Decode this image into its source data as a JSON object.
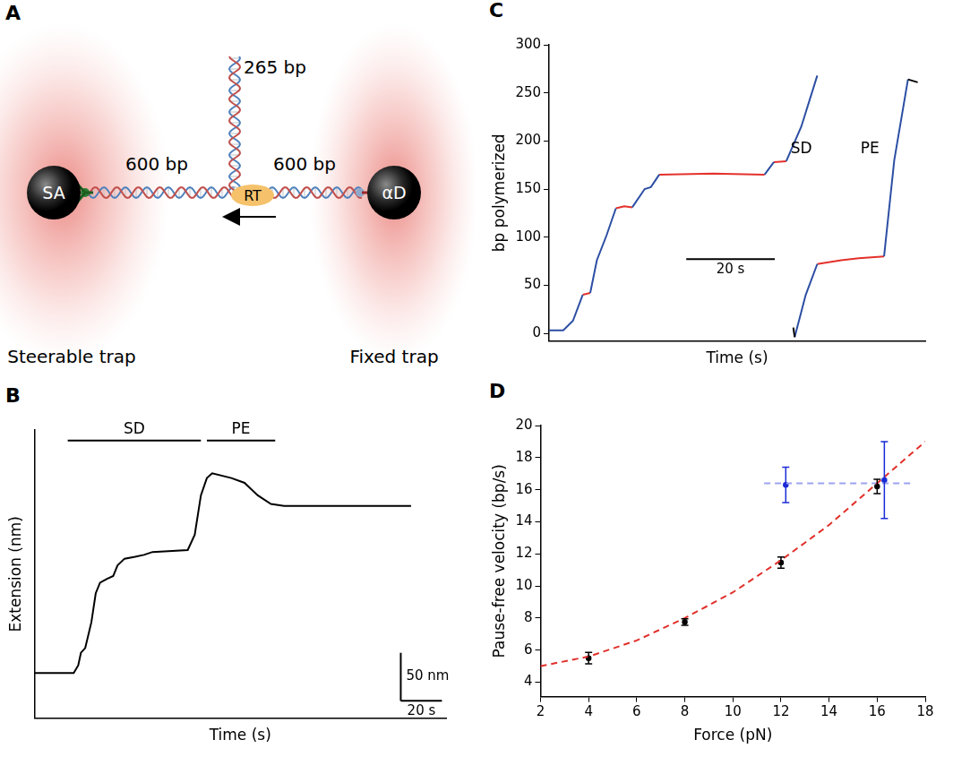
{
  "diagram": {
    "panel": "A",
    "left_bead": "SA",
    "right_bead": "αD",
    "left_handle": "600 bp",
    "branch": "265 bp",
    "right_handle": "600 bp",
    "enzyme": "RT",
    "left_trap": "Steerable trap",
    "right_trap": "Fixed trap"
  },
  "chart_data": [
    {
      "panel": "B",
      "type": "line",
      "x_label": "Time (s)",
      "y_label": "Extension (nm)",
      "xlim": [
        0,
        200
      ],
      "ylim": [
        0,
        300
      ],
      "tick_labels": false,
      "grid": false,
      "series": [
        {
          "color": "#000000",
          "x": [
            0,
            19.1,
            21.3,
            22.6,
            24.7,
            27.7,
            29.8,
            31.9,
            35.3,
            38.3,
            40.4,
            43.8,
            48.9,
            53.2,
            57.4,
            74.5,
            77.9,
            80.9,
            83.8,
            86.4,
            95.7,
            102.1,
            108.5,
            114.9,
            121.3,
            183
          ],
          "values": [
            47,
            47,
            55,
            68,
            73,
            100,
            130,
            141,
            145,
            148,
            159,
            166,
            168,
            170,
            173,
            175,
            191,
            232,
            250,
            255,
            250,
            245,
            232,
            223,
            221,
            221
          ]
        }
      ],
      "annotations": [
        {
          "text": "SD",
          "x_start": 16.2,
          "x_end": 80.9,
          "y": 289
        },
        {
          "text": "PE",
          "x_start": 83.8,
          "x_end": 117,
          "y": 289
        }
      ],
      "scale_bars": [
        {
          "label": "50 nm",
          "value": 50,
          "axis": "y",
          "x": 178,
          "y": 18
        },
        {
          "label": "20 s",
          "value": 20,
          "axis": "x",
          "x": 178,
          "y": 18
        }
      ]
    },
    {
      "panel": "C",
      "type": "line",
      "x_label": "Time (s)",
      "y_label": "bp polymerized",
      "xlim": [
        0,
        85
      ],
      "ylim": [
        -8,
        300
      ],
      "yticks": [
        0,
        50,
        100,
        150,
        200,
        250,
        300
      ],
      "tick_labels": "y",
      "grid": false,
      "series": [
        {
          "color": "#2c4ea3",
          "x": [
            0,
            3.2,
            5.4,
            7.6,
            8.5,
            9.3,
            10.8,
            13,
            15.1,
            17,
            18.8,
            21.6,
            23,
            24.9,
            37,
            48.7,
            50.8,
            52,
            53.6,
            57,
            60.6
          ],
          "values": [
            3,
            3,
            13,
            40,
            null,
            42,
            76,
            102,
            130,
            null,
            131,
            150,
            152,
            165,
            null,
            165,
            178,
            null,
            179,
            215,
            268
          ]
        },
        {
          "color": "#e4312b",
          "x": [
            7.6,
            9.3,
            12,
            15.1,
            17,
            18.8,
            21,
            24.9,
            37,
            48.7,
            49.5,
            50.8,
            53.6
          ],
          "values": [
            40,
            42,
            null,
            130,
            132,
            131,
            null,
            165,
            166,
            165,
            null,
            178,
            179
          ]
        },
        {
          "color": "#000000",
          "x": [
            55.2,
            55.5,
            56,
            81.1,
            83.3
          ],
          "values": [
            6,
            -4,
            null,
            264,
            261
          ]
        },
        {
          "color": "#2c4ea3",
          "x": [
            55.5,
            58,
            60.6,
            62,
            75.7,
            78,
            81.1
          ],
          "values": [
            -4,
            40,
            72,
            null,
            80,
            180,
            264
          ]
        },
        {
          "color": "#e4312b",
          "x": [
            60.6,
            66,
            70,
            75.7
          ],
          "values": [
            72,
            76,
            78,
            80
          ]
        }
      ],
      "annotations": [
        {
          "text": "SD",
          "x": 57,
          "y": 191
        },
        {
          "text": "PE",
          "x": 72.5,
          "y": 191
        }
      ],
      "scale_bars": [
        {
          "label": "20 s",
          "value": 20,
          "axis": "x",
          "x": 31,
          "y": 77
        }
      ]
    },
    {
      "panel": "D",
      "type": "scatter",
      "x_label": "Force (pN)",
      "y_label": "Pause-free velocity (bp/s)",
      "xlim": [
        2,
        18
      ],
      "xticks": [
        2,
        4,
        6,
        8,
        10,
        12,
        14,
        16,
        18
      ],
      "ylim": [
        3.1,
        20
      ],
      "yticks": [
        4,
        6,
        8,
        10,
        12,
        14,
        16,
        18,
        20
      ],
      "grid": false,
      "series": [
        {
          "type": "line",
          "line_style": "dashed",
          "color": "#e0302a",
          "x": [
            2,
            4,
            6,
            8,
            10,
            12,
            14,
            16,
            18
          ],
          "values": [
            5.0,
            5.6,
            6.6,
            8.0,
            9.6,
            11.6,
            13.8,
            16.4,
            19.0
          ]
        },
        {
          "type": "line",
          "line_style": "dashed",
          "color": "#9da3ee",
          "x": [
            11.3,
            17.5
          ],
          "values": [
            16.4,
            16.4
          ]
        },
        {
          "type": "scatter",
          "marker": "dot",
          "color": "#000000",
          "x": [
            4,
            8,
            12,
            16
          ],
          "values": [
            5.5,
            7.75,
            11.45,
            16.2
          ],
          "errors": [
            0.35,
            0.2,
            0.35,
            0.45
          ]
        },
        {
          "type": "scatter",
          "marker": "dot",
          "color": "#1a2ad6",
          "x": [
            12.2,
            16.3
          ],
          "values": [
            16.3,
            16.6
          ],
          "errors": [
            1.1,
            2.4
          ]
        }
      ]
    }
  ]
}
